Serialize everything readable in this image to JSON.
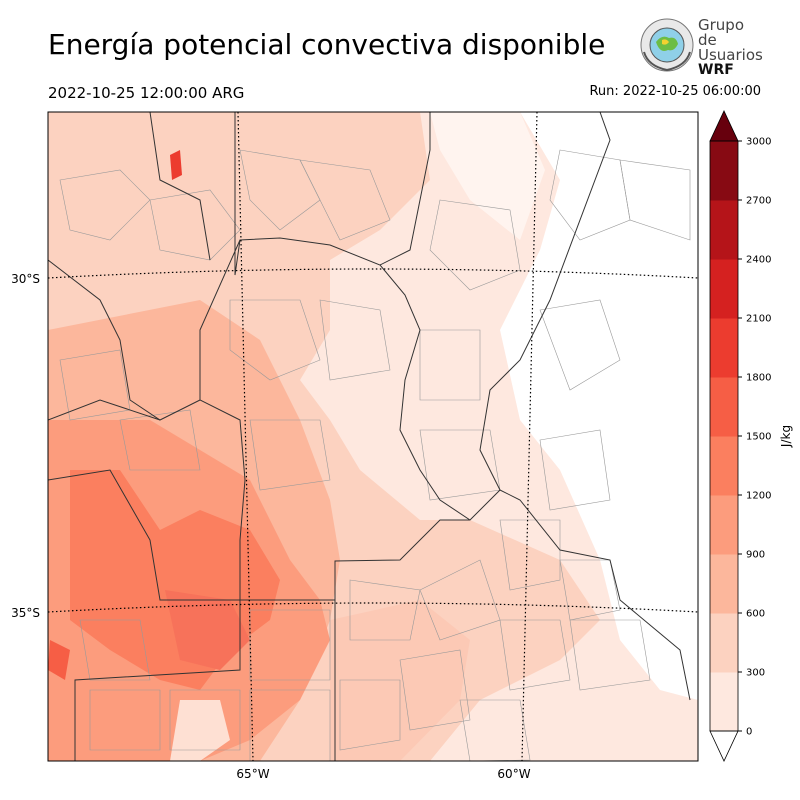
{
  "header": {
    "title": "Energía potencial convectiva disponible",
    "valid_time": "2022-10-25 12:00:00 ARG",
    "run_time": "Run: 2022-10-25 06:00:00"
  },
  "logo": {
    "line1": "Grupo de",
    "line2": "Usuarios",
    "line3": "WRF"
  },
  "map": {
    "lat_labels": [
      "30°S",
      "35°S"
    ],
    "lon_labels": [
      "65°W",
      "60°W"
    ]
  },
  "colorbar": {
    "label": "J/kg",
    "ticks": [
      "0",
      "300",
      "600",
      "900",
      "1200",
      "1500",
      "1800",
      "2100",
      "2400",
      "2700",
      "3000"
    ],
    "colors": [
      "#fee8df",
      "#fcd2c0",
      "#fcb79c",
      "#fc9c7d",
      "#fb7f5f",
      "#f65e45",
      "#ec3c2f",
      "#d52120",
      "#b51419",
      "#870a13",
      "#67000d"
    ]
  }
}
